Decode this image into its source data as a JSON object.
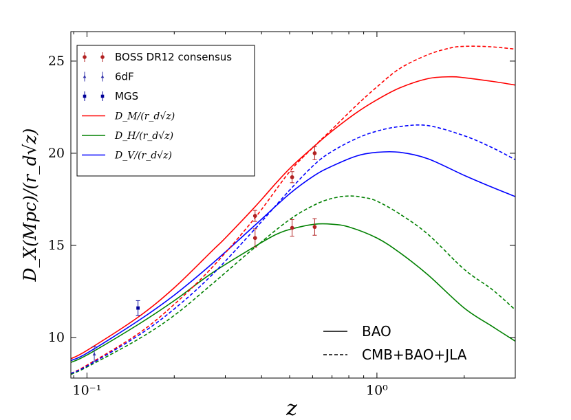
{
  "chart_data": {
    "type": "line",
    "xscale": "log",
    "xlim": [
      0.088,
      3.0
    ],
    "ylim": [
      7.8,
      26.6
    ],
    "xlabel": "z",
    "ylabel": "D_X(Mpc)/(r_d√z)",
    "x_ticks": [
      {
        "value": 0.1,
        "label": "10⁻¹"
      },
      {
        "value": 1.0,
        "label": "10⁰"
      }
    ],
    "y_ticks": [
      10,
      15,
      20,
      25
    ],
    "series": [
      {
        "name": "D_M/(r_d√z)",
        "model": "BAO",
        "color": "#ff0000",
        "dash": "solid",
        "x": [
          0.088,
          0.1,
          0.15,
          0.2,
          0.27,
          0.3,
          0.38,
          0.45,
          0.51,
          0.61,
          0.7,
          0.85,
          1.0,
          1.2,
          1.5,
          1.8,
          2.0,
          2.5,
          3.0
        ],
        "y": [
          8.85,
          9.3,
          11.1,
          12.7,
          14.7,
          15.4,
          17.1,
          18.4,
          19.3,
          20.4,
          21.2,
          22.2,
          22.9,
          23.55,
          24.05,
          24.15,
          24.1,
          23.9,
          23.7
        ]
      },
      {
        "name": "D_H/(r_d√z)",
        "model": "BAO",
        "color": "#008000",
        "dash": "solid",
        "x": [
          0.088,
          0.1,
          0.15,
          0.2,
          0.27,
          0.38,
          0.45,
          0.51,
          0.61,
          0.7,
          0.8,
          1.0,
          1.2,
          1.5,
          2.0,
          2.5,
          3.0
        ],
        "y": [
          8.65,
          9.05,
          10.7,
          12.0,
          13.5,
          14.95,
          15.6,
          15.9,
          16.15,
          16.15,
          16.0,
          15.4,
          14.6,
          13.4,
          11.6,
          10.6,
          9.8
        ],
        "x_note": "peak near z≈0.65"
      },
      {
        "name": "D_V/(r_d√z)",
        "model": "BAO",
        "color": "#0000ff",
        "dash": "solid",
        "x": [
          0.088,
          0.1,
          0.15,
          0.2,
          0.27,
          0.38,
          0.5,
          0.61,
          0.7,
          0.85,
          1.0,
          1.2,
          1.5,
          2.0,
          2.5,
          3.0
        ],
        "y": [
          8.75,
          9.15,
          10.9,
          12.3,
          14.0,
          16.1,
          17.8,
          18.8,
          19.3,
          19.85,
          20.05,
          20.05,
          19.7,
          18.8,
          18.15,
          17.65
        ]
      },
      {
        "name": "D_M/(r_d√z)",
        "model": "CMB+BAO+JLA",
        "color": "#ff0000",
        "dash": "dashed",
        "x": [
          0.088,
          0.1,
          0.15,
          0.2,
          0.27,
          0.38,
          0.5,
          0.61,
          0.7,
          0.85,
          1.0,
          1.2,
          1.5,
          1.8,
          2.0,
          2.3,
          2.6,
          3.0
        ],
        "y": [
          8.05,
          8.5,
          10.2,
          11.8,
          13.8,
          16.5,
          19.0,
          20.4,
          21.3,
          22.6,
          23.6,
          24.6,
          25.35,
          25.72,
          25.8,
          25.8,
          25.75,
          25.65
        ]
      },
      {
        "name": "D_H/(r_d√z)",
        "model": "CMB+BAO+JLA",
        "color": "#008000",
        "dash": "dashed",
        "x": [
          0.088,
          0.1,
          0.15,
          0.2,
          0.27,
          0.38,
          0.5,
          0.61,
          0.7,
          0.8,
          0.9,
          1.0,
          1.2,
          1.5,
          2.0,
          2.5,
          3.0
        ],
        "y": [
          8.0,
          8.4,
          9.9,
          11.2,
          12.9,
          14.9,
          16.4,
          17.2,
          17.55,
          17.68,
          17.6,
          17.4,
          16.7,
          15.6,
          13.7,
          12.6,
          11.5
        ]
      },
      {
        "name": "D_V/(r_d√z)",
        "model": "CMB+BAO+JLA",
        "color": "#0000ff",
        "dash": "dashed",
        "x": [
          0.088,
          0.1,
          0.15,
          0.2,
          0.27,
          0.38,
          0.5,
          0.61,
          0.7,
          0.85,
          1.0,
          1.2,
          1.5,
          2.0,
          2.5,
          3.0
        ],
        "y": [
          8.05,
          8.45,
          10.1,
          11.55,
          13.4,
          15.9,
          18.0,
          19.4,
          20.1,
          20.8,
          21.2,
          21.45,
          21.5,
          20.95,
          20.3,
          19.65
        ]
      }
    ],
    "points": [
      {
        "name": "BOSS DR12 consensus",
        "color": "#b22222",
        "marker": "o",
        "data": [
          {
            "x": 0.38,
            "y": 16.6,
            "err": 0.3
          },
          {
            "x": 0.51,
            "y": 18.7,
            "err": 0.3
          },
          {
            "x": 0.61,
            "y": 20.0,
            "err": 0.35
          },
          {
            "x": 0.38,
            "y": 15.4,
            "err": 0.5
          },
          {
            "x": 0.51,
            "y": 15.95,
            "err": 0.45
          },
          {
            "x": 0.61,
            "y": 16.0,
            "err": 0.45
          }
        ]
      },
      {
        "name": "6dF",
        "color": "#3333aa",
        "marker": "^",
        "data": [
          {
            "x": 0.106,
            "y": 9.1,
            "err": 0.4
          }
        ]
      },
      {
        "name": "MGS",
        "color": "#000099",
        "marker": "s",
        "data": [
          {
            "x": 0.15,
            "y": 11.6,
            "err": 0.4
          }
        ]
      }
    ],
    "legend": {
      "location": "top-left",
      "entries": [
        {
          "kind": "point",
          "ref": 0,
          "label": "BOSS DR12 consensus"
        },
        {
          "kind": "point",
          "ref": 1,
          "label": "6dF"
        },
        {
          "kind": "point",
          "ref": 2,
          "label": "MGS"
        },
        {
          "kind": "line",
          "color": "#ff0000",
          "label": "D_M/(r_d√z)"
        },
        {
          "kind": "line",
          "color": "#008000",
          "label": "D_H/(r_d√z)"
        },
        {
          "kind": "line",
          "color": "#0000ff",
          "label": "D_V/(r_d√z)"
        }
      ]
    },
    "linestyle_legend": {
      "location": "bottom-right",
      "entries": [
        {
          "dash": "solid",
          "label": "BAO"
        },
        {
          "dash": "dashed",
          "label": "CMB+BAO+JLA"
        }
      ]
    }
  }
}
